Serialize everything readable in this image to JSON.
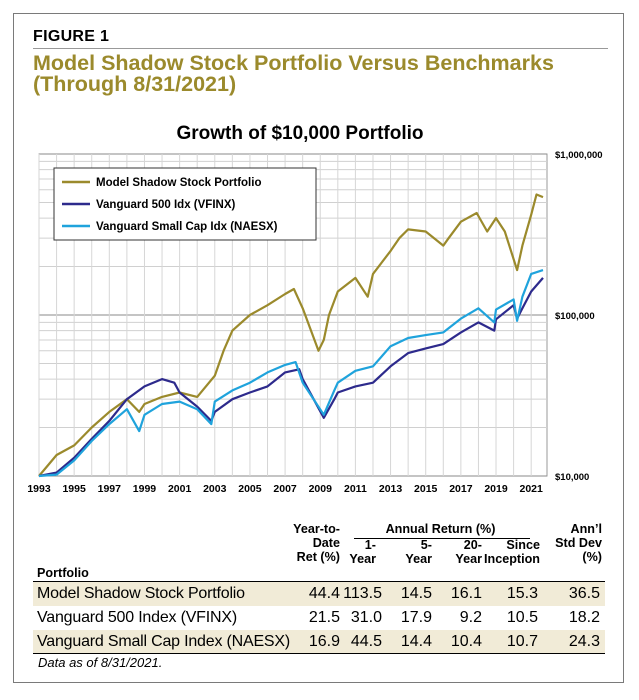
{
  "figure_label": "FIGURE 1",
  "title": "Model Shadow Stock Portfolio Versus Benchmarks (Through 8/31/2021)",
  "colors": {
    "model": "#9b8a2c",
    "vfinx": "#2d2a8c",
    "naesx": "#1fa3dc",
    "band": "#f1ebd7",
    "title": "#9b8a2c"
  },
  "chart_data": {
    "type": "line",
    "title": "Growth of $10,000 Portfolio",
    "x_ticks": [
      "1993",
      "1995",
      "1997",
      "1999",
      "2001",
      "2003",
      "2005",
      "2007",
      "2009",
      "2011",
      "2013",
      "2015",
      "2017",
      "2019",
      "2021"
    ],
    "y_scale": "log",
    "ylim": [
      10000,
      1000000
    ],
    "y_ticks": [
      "$10,000",
      "$100,000",
      "$1,000,000"
    ],
    "legend_position": "top-left",
    "series": [
      {
        "name": "Model Shadow Stock Portfolio",
        "x": [
          1993,
          1994,
          1995,
          1996,
          1997,
          1998,
          1998.7,
          1999,
          2000,
          2001,
          2002,
          2003,
          2003.5,
          2004,
          2005,
          2006,
          2007,
          2007.5,
          2008,
          2008.9,
          2009.2,
          2009.5,
          2010,
          2011,
          2011.7,
          2012,
          2013,
          2013.5,
          2014,
          2015,
          2016,
          2016.3,
          2017,
          2017.9,
          2018.5,
          2019,
          2019.5,
          2020.2,
          2020.5,
          2021,
          2021.3,
          2021.67
        ],
        "y": [
          10000,
          13500,
          15500,
          20000,
          25000,
          30000,
          25000,
          28000,
          31000,
          33000,
          31000,
          42000,
          60000,
          80000,
          100000,
          115000,
          135000,
          145000,
          110000,
          60000,
          70000,
          100000,
          140000,
          170000,
          130000,
          180000,
          250000,
          300000,
          340000,
          330000,
          270000,
          300000,
          380000,
          430000,
          330000,
          400000,
          330000,
          190000,
          270000,
          420000,
          560000,
          540000
        ]
      },
      {
        "name": "Vanguard 500 Idx (VFINX)",
        "x": [
          1993,
          1994,
          1995,
          1996,
          1997,
          1998,
          1999,
          2000,
          2000.7,
          2001,
          2002,
          2002.8,
          2003,
          2004,
          2005,
          2006,
          2007,
          2007.8,
          2008,
          2009.2,
          2009.8,
          2010,
          2011,
          2012,
          2013,
          2014,
          2015,
          2016,
          2017,
          2018,
          2018.9,
          2019,
          2020,
          2020.2,
          2020.5,
          2021,
          2021.67
        ],
        "y": [
          10000,
          10500,
          13000,
          17000,
          22000,
          30000,
          36000,
          40000,
          38000,
          33000,
          27000,
          22000,
          25000,
          30000,
          33000,
          36000,
          44000,
          46000,
          40000,
          23000,
          30000,
          33000,
          36000,
          38000,
          48000,
          58000,
          62000,
          66000,
          78000,
          90000,
          80000,
          94000,
          115000,
          95000,
          110000,
          140000,
          170000
        ]
      },
      {
        "name": "Vanguard Small Cap Idx (NAESX)",
        "x": [
          1993,
          1994,
          1995,
          1996,
          1997,
          1998,
          1998.7,
          1999,
          2000,
          2001,
          2002,
          2002.8,
          2003,
          2004,
          2005,
          2006,
          2007,
          2007.6,
          2008,
          2009.2,
          2009.8,
          2010,
          2011,
          2012,
          2013,
          2014,
          2015,
          2016,
          2017,
          2018,
          2018.9,
          2019,
          2020,
          2020.2,
          2020.5,
          2021,
          2021.67
        ],
        "y": [
          10000,
          10200,
          12500,
          16500,
          21000,
          26000,
          19000,
          24000,
          28000,
          29000,
          26000,
          21000,
          29000,
          34000,
          38000,
          44000,
          49000,
          51000,
          38000,
          24000,
          34000,
          38000,
          45000,
          48000,
          64000,
          72000,
          75000,
          78000,
          95000,
          110000,
          90000,
          108000,
          125000,
          92000,
          130000,
          180000,
          190000
        ]
      }
    ]
  },
  "table": {
    "headers": {
      "ytd": [
        "Year-to-",
        "Date",
        "Ret (%)"
      ],
      "group": "Annual Return (%)",
      "y1": [
        "1-",
        "Year"
      ],
      "y5": [
        "5-",
        "Year"
      ],
      "y20": [
        "20-",
        "Year"
      ],
      "since": [
        "Since",
        "Inception"
      ],
      "std": [
        "Ann’l",
        "Std Dev",
        "(%)"
      ],
      "portfolio": "Portfolio"
    },
    "rows": [
      {
        "name": "Model Shadow Stock Portfolio",
        "ytd": "44.4",
        "y1": "113.5",
        "y5": "14.5",
        "y20": "16.1",
        "since": "15.3",
        "std": "36.5"
      },
      {
        "name": "Vanguard 500 Index (VFINX)",
        "ytd": "21.5",
        "y1": "31.0",
        "y5": "17.9",
        "y20": "9.2",
        "since": "10.5",
        "std": "18.2"
      },
      {
        "name": "Vanguard Small Cap Index (NAESX)",
        "ytd": "16.9",
        "y1": "44.5",
        "y5": "14.4",
        "y20": "10.4",
        "since": "10.7",
        "std": "24.3"
      }
    ]
  },
  "note": "Data as of 8/31/2021."
}
